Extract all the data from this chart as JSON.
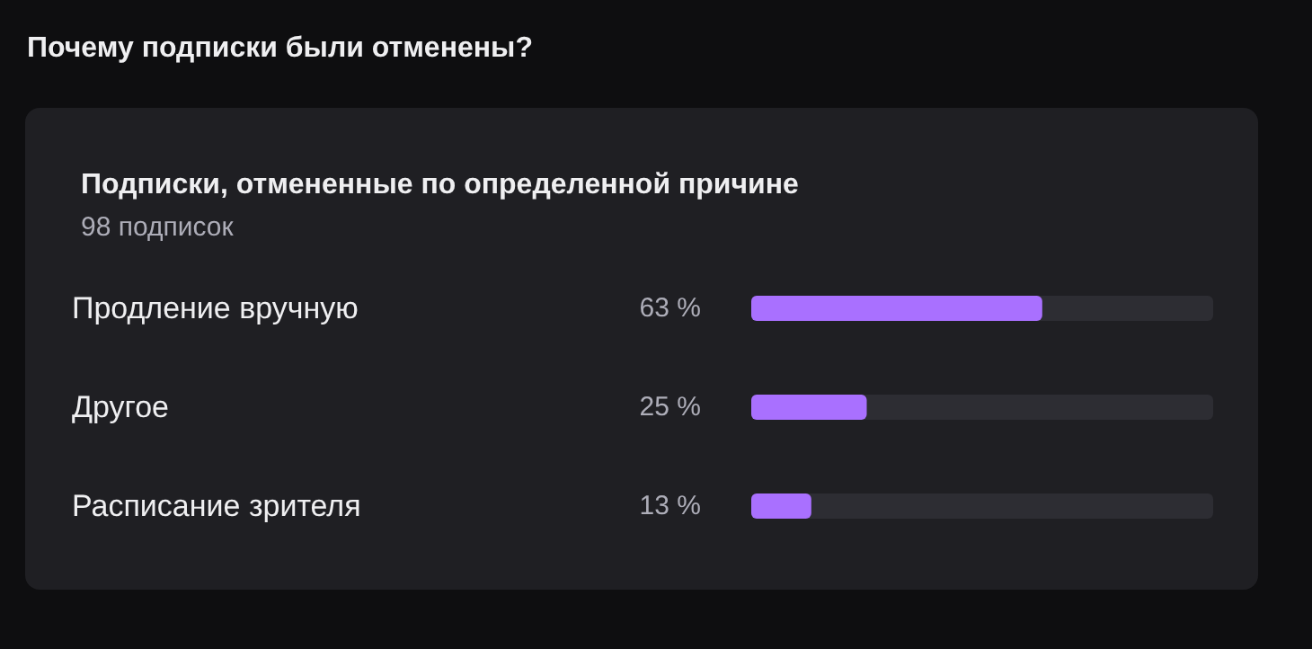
{
  "chart_data": {
    "type": "bar",
    "orientation": "horizontal",
    "title": "Почему подписки были отменены?",
    "subtitle": "Подписки, отмененные по определенной причине",
    "annotations": [
      "98 подписок"
    ],
    "categories": [
      "Продление вручную",
      "Другое",
      "Расписание зрителя"
    ],
    "values": [
      63,
      25,
      13
    ],
    "color": "#a970ff",
    "value_labels": [
      "63 %",
      "25 %",
      "13 %"
    ],
    "xlim": [
      0,
      100
    ],
    "tick_labels": "y"
  }
}
